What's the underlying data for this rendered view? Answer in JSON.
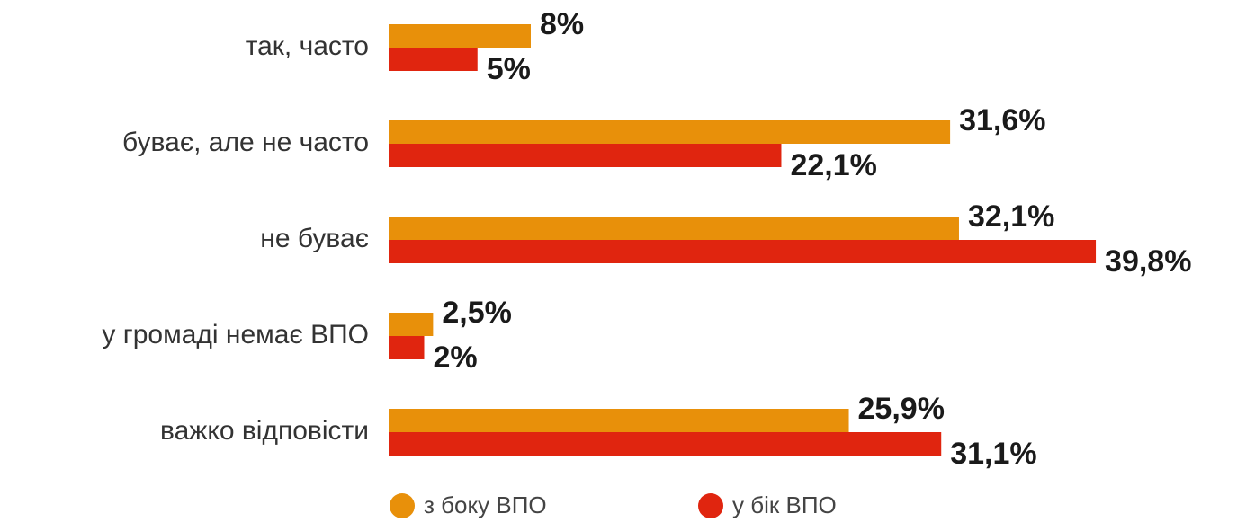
{
  "chart_data": {
    "type": "barh",
    "categories": [
      "так, часто",
      "буває, але не часто",
      "не буває",
      "у громаді немає ВПО",
      "важко відповісти"
    ],
    "series": [
      {
        "name": "з боку ВПО",
        "color": "#e8900a",
        "values": [
          8,
          31.6,
          32.1,
          2.5,
          25.9
        ],
        "value_labels": [
          "8%",
          "31,6%",
          "32,1%",
          "2,5%",
          "25,9%"
        ]
      },
      {
        "name": "у бік ВПО",
        "color": "#e0250f",
        "values": [
          5,
          22.1,
          39.8,
          2,
          31.1
        ],
        "value_labels": [
          "5%",
          "22,1%",
          "39,8%",
          "2%",
          "31,1%"
        ]
      }
    ],
    "xlim": [
      0,
      40
    ]
  }
}
